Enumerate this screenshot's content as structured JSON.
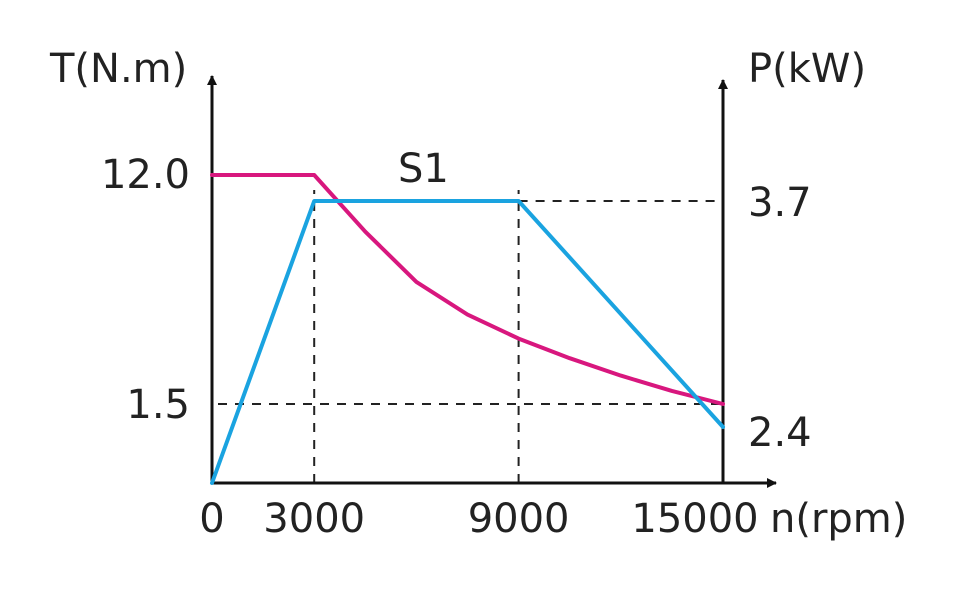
{
  "chart_data": {
    "type": "line",
    "x": {
      "label": "n(rpm)",
      "ticks": [
        "0",
        "3000",
        "9000",
        "15000"
      ],
      "tick_values": [
        0,
        3000,
        9000,
        15000
      ],
      "range": [
        0,
        15000
      ]
    },
    "y_left": {
      "label": "T(N.m)",
      "ticks": [
        "12.0",
        "1.5"
      ],
      "tick_values": [
        12.0,
        1.5
      ]
    },
    "y_right": {
      "label": "P(kW)",
      "ticks": [
        "3.7",
        "2.4"
      ],
      "tick_values": [
        3.7,
        2.4
      ]
    },
    "annotations": [
      "S1"
    ],
    "series": [
      {
        "axis": "left",
        "color": "#d8177e",
        "x": [
          0,
          3000,
          4500,
          6000,
          7500,
          9000,
          10500,
          12000,
          13500,
          15000
        ],
        "y": [
          12.0,
          12.0,
          9.4,
          7.1,
          5.6,
          4.5,
          3.6,
          2.8,
          2.1,
          1.5
        ]
      },
      {
        "axis": "right",
        "color": "#1aa3e0",
        "x": [
          0,
          3000,
          9000,
          15000
        ],
        "y": [
          0,
          3.7,
          3.7,
          2.4
        ]
      }
    ],
    "reference_lines": [
      {
        "kind": "vertical",
        "x": 3000
      },
      {
        "kind": "vertical",
        "x": 9000
      },
      {
        "kind": "horizontal",
        "axis": "right",
        "y": 3.7
      },
      {
        "kind": "horizontal",
        "axis": "left",
        "y": 1.5
      }
    ],
    "grid": false,
    "legend": "none"
  }
}
